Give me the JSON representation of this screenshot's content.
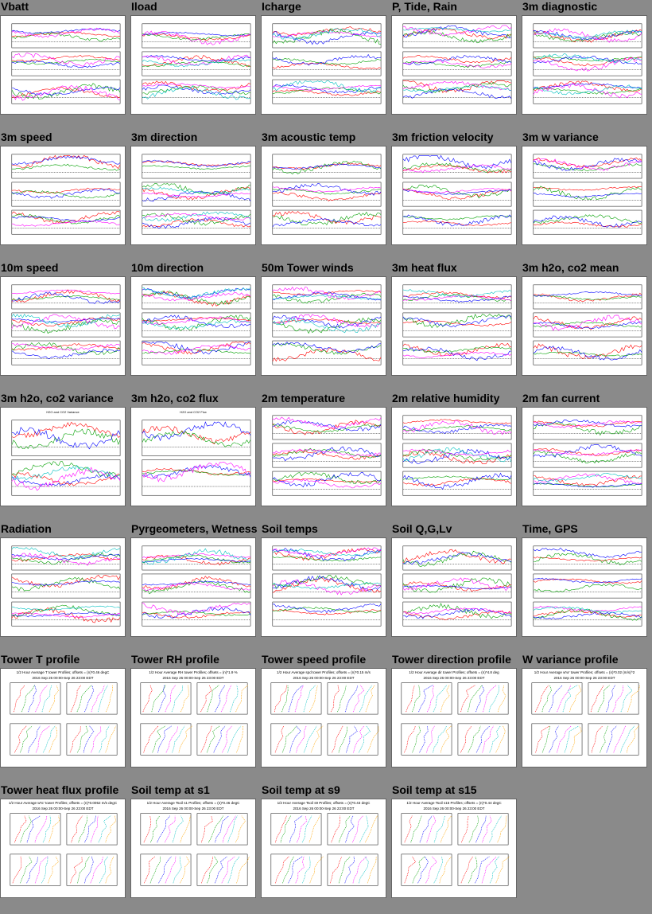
{
  "page": {
    "panels": [
      {
        "title": "Vbatt",
        "kind": "ts3"
      },
      {
        "title": "Iload",
        "kind": "ts3"
      },
      {
        "title": "Icharge",
        "kind": "ts3"
      },
      {
        "title": "P, Tide, Rain",
        "kind": "ts3"
      },
      {
        "title": "3m diagnostic",
        "kind": "ts3"
      },
      {
        "title": "3m speed",
        "kind": "ts3"
      },
      {
        "title": "3m direction",
        "kind": "ts3"
      },
      {
        "title": "3m acoustic temp",
        "kind": "ts3"
      },
      {
        "title": "3m friction velocity",
        "kind": "ts3"
      },
      {
        "title": "3m w variance",
        "kind": "ts3"
      },
      {
        "title": "10m speed",
        "kind": "ts3"
      },
      {
        "title": "10m direction",
        "kind": "ts3"
      },
      {
        "title": "50m Tower winds",
        "kind": "ts3"
      },
      {
        "title": "3m heat flux",
        "kind": "ts3"
      },
      {
        "title": "3m h2o, co2 mean",
        "kind": "ts3"
      },
      {
        "title": "3m h2o, co2 variance",
        "kind": "ts2",
        "heading": "H2O and CO2 Variance"
      },
      {
        "title": "3m h2o, co2 flux",
        "kind": "ts2",
        "heading": "H2O and CO2 Flux"
      },
      {
        "title": "2m temperature",
        "kind": "ts3"
      },
      {
        "title": "2m relative humidity",
        "kind": "ts3"
      },
      {
        "title": "2m fan current",
        "kind": "ts3"
      },
      {
        "title": "Radiation",
        "kind": "ts3"
      },
      {
        "title": "Pyrgeometers, Wetness",
        "kind": "ts3"
      },
      {
        "title": "Soil temps",
        "kind": "ts3"
      },
      {
        "title": "Soil Q,G,Lv",
        "kind": "ts3"
      },
      {
        "title": "Time, GPS",
        "kind": "ts3"
      },
      {
        "title": "Tower T profile",
        "kind": "prof",
        "heading": "1/2 Hour Average T tower Profiles; offsets = (n)*0.46 degC",
        "subheading": "2016 Sep 26 00:00-Sep 26 23:00 EDT"
      },
      {
        "title": "Tower RH profile",
        "kind": "prof",
        "heading": "1/2 Hour Average RH tower Profiles; offsets = (n)*1.9 %",
        "subheading": "2016 Sep 26 00:00-Sep 26 23:00 EDT"
      },
      {
        "title": "Tower speed profile",
        "kind": "prof",
        "heading": "1/2 Hour Average spd tower Profiles; offsets = (n)*0.15 m/s",
        "subheading": "2016 Sep 26 00:00-Sep 26 23:00 EDT"
      },
      {
        "title": "Tower direction profile",
        "kind": "prof",
        "heading": "1/2 Hour Average dir tower Profiles; offsets = (n)*4.8 deg",
        "subheading": "2016 Sep 26 00:00-Sep 26 23:00 EDT"
      },
      {
        "title": "W variance profile",
        "kind": "prof",
        "heading": "1/2 Hour Average w'w' tower Profiles; offsets = (n)*0.02 (m/s)^2",
        "subheading": "2016 Sep 26 00:00-Sep 26 23:00 EDT"
      },
      {
        "title": "Tower heat flux profile",
        "kind": "prof",
        "heading": "1/2 Hour Average w'tc' tower Profiles; offsets = (n)*0.0052 m/s degC",
        "subheading": "2016 Sep 26 00:00-Sep 26 23:00 EDT"
      },
      {
        "title": "Soil temp at s1",
        "kind": "prof",
        "heading": "1/2 Hour Average Tsoil s1 Profiles; offsets = (n)*0.46 degC",
        "subheading": "2016 Sep 26 00:00-Sep 26 23:00 EDT"
      },
      {
        "title": "Soil temp at s9",
        "kind": "prof",
        "heading": "1/2 Hour Average Tsoil s9 Profiles; offsets = (n)*0.43 degC",
        "subheading": "2016 Sep 26 00:00-Sep 26 23:00 EDT"
      },
      {
        "title": "Soil temp at s15",
        "kind": "prof",
        "heading": "1/2 Hour Average Tsoil s15 Profiles; offsets = (n)*0.44 degC",
        "subheading": "2016 Sep 26 00:00-Sep 26 23:00 EDT"
      }
    ]
  },
  "colors": {
    "background": "#8a8a8a",
    "series": [
      "#ff0000",
      "#00a000",
      "#0000ff",
      "#ff00ff",
      "#00c0c0",
      "#ffa500",
      "#000000"
    ]
  }
}
